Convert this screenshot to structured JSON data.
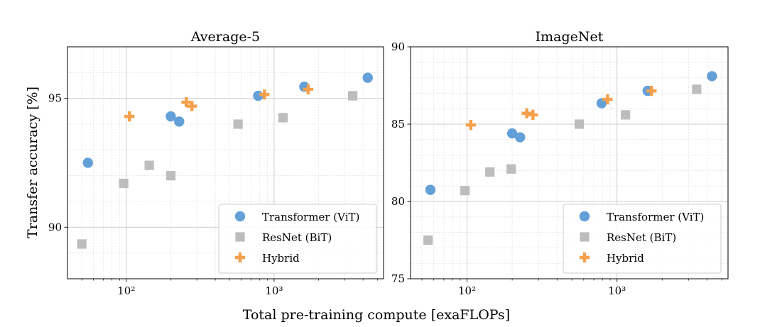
{
  "figure": {
    "ylabel": "Transfer accuracy [%]",
    "xlabel": "Total pre-training compute [exaFLOPs]"
  },
  "chart_data": [
    {
      "type": "scatter",
      "title": "Average-5",
      "xscale": "log",
      "xlim": [
        40,
        5500
      ],
      "ylim": [
        88,
        97
      ],
      "xticks": [
        {
          "value": 100,
          "label": "10²"
        },
        {
          "value": 1000,
          "label": "10³"
        }
      ],
      "yticks": [
        {
          "value": 90,
          "label": "90"
        },
        {
          "value": 95,
          "label": "95"
        }
      ],
      "grid": true,
      "legend": {
        "placement": "bottom-right"
      },
      "series": [
        {
          "name": "Transformer (ViT)",
          "marker": "circle",
          "color": "#5a9bd5",
          "points": [
            [
              55,
              92.5
            ],
            [
              200,
              94.3
            ],
            [
              228,
              94.1
            ],
            [
              780,
              95.1
            ],
            [
              1600,
              95.45
            ],
            [
              4300,
              95.8
            ]
          ]
        },
        {
          "name": "ResNet (BiT)",
          "marker": "square",
          "color": "#bdbdbd",
          "points": [
            [
              50,
              89.35
            ],
            [
              96,
              91.7
            ],
            [
              143,
              92.4
            ],
            [
              200,
              92.0
            ],
            [
              570,
              94.0
            ],
            [
              1150,
              94.25
            ],
            [
              3400,
              95.1
            ]
          ]
        },
        {
          "name": "Hybrid",
          "marker": "plus",
          "color": "#f5a04c",
          "points": [
            [
              105,
              94.3
            ],
            [
              255,
              94.85
            ],
            [
              278,
              94.7
            ],
            [
              860,
              95.15
            ],
            [
              1700,
              95.35
            ]
          ]
        }
      ]
    },
    {
      "type": "scatter",
      "title": "ImageNet",
      "xscale": "log",
      "xlim": [
        42,
        5500
      ],
      "ylim": [
        75,
        90
      ],
      "xticks": [
        {
          "value": 100,
          "label": "10²"
        },
        {
          "value": 1000,
          "label": "10³"
        }
      ],
      "yticks": [
        {
          "value": 75,
          "label": "75"
        },
        {
          "value": 80,
          "label": "80"
        },
        {
          "value": 85,
          "label": "85"
        },
        {
          "value": 90,
          "label": "90"
        }
      ],
      "grid": true,
      "legend": {
        "placement": "bottom-right"
      },
      "series": [
        {
          "name": "Transformer (ViT)",
          "marker": "circle",
          "color": "#5a9bd5",
          "points": [
            [
              57,
              80.75
            ],
            [
              200,
              84.4
            ],
            [
              226,
              84.15
            ],
            [
              790,
              86.35
            ],
            [
              1600,
              87.15
            ],
            [
              4300,
              88.1
            ]
          ]
        },
        {
          "name": "ResNet (BiT)",
          "marker": "square",
          "color": "#bdbdbd",
          "points": [
            [
              55,
              77.5
            ],
            [
              97,
              80.7
            ],
            [
              142,
              81.9
            ],
            [
              197,
              82.1
            ],
            [
              560,
              85.0
            ],
            [
              1140,
              85.6
            ],
            [
              3400,
              87.25
            ]
          ]
        },
        {
          "name": "Hybrid",
          "marker": "plus",
          "color": "#f5a04c",
          "points": [
            [
              106,
              84.95
            ],
            [
              250,
              85.7
            ],
            [
              275,
              85.6
            ],
            [
              865,
              86.6
            ],
            [
              1700,
              87.15
            ]
          ]
        }
      ]
    }
  ]
}
